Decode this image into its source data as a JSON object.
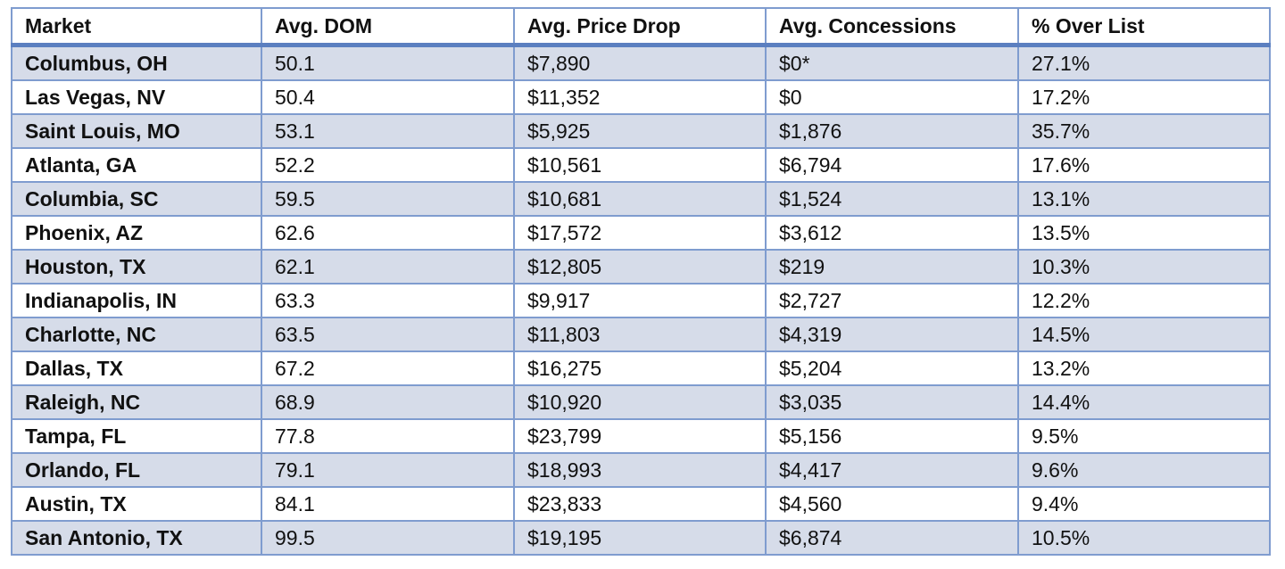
{
  "table": {
    "header": [
      "Market",
      "Avg. DOM",
      "Avg. Price Drop",
      "Avg. Concessions",
      "% Over List"
    ],
    "rows": [
      [
        "Columbus, OH",
        "50.1",
        "$7,890",
        "$0*",
        "27.1%"
      ],
      [
        "Las Vegas, NV",
        "50.4",
        "$11,352",
        "$0",
        "17.2%"
      ],
      [
        "Saint Louis, MO",
        "53.1",
        "$5,925",
        "$1,876",
        "35.7%"
      ],
      [
        "Atlanta, GA",
        "52.2",
        "$10,561",
        "$6,794",
        "17.6%"
      ],
      [
        "Columbia, SC",
        "59.5",
        "$10,681",
        "$1,524",
        "13.1%"
      ],
      [
        "Phoenix, AZ",
        "62.6",
        "$17,572",
        "$3,612",
        "13.5%"
      ],
      [
        "Houston, TX",
        "62.1",
        "$12,805",
        "$219",
        "10.3%"
      ],
      [
        "Indianapolis, IN",
        "63.3",
        "$9,917",
        "$2,727",
        "12.2%"
      ],
      [
        "Charlotte, NC",
        "63.5",
        "$11,803",
        "$4,319",
        "14.5%"
      ],
      [
        "Dallas, TX",
        "67.2",
        "$16,275",
        "$5,204",
        "13.2%"
      ],
      [
        "Raleigh, NC",
        "68.9",
        "$10,920",
        "$3,035",
        "14.4%"
      ],
      [
        "Tampa, FL",
        "77.8",
        "$23,799",
        "$5,156",
        "9.5%"
      ],
      [
        "Orlando, FL",
        "79.1",
        "$18,993",
        "$4,417",
        "9.6%"
      ],
      [
        "Austin, TX",
        "84.1",
        "$23,833",
        "$4,560",
        "9.4%"
      ],
      [
        "San Antonio, TX",
        "99.5",
        "$19,195",
        "$6,874",
        "10.5%"
      ]
    ]
  }
}
